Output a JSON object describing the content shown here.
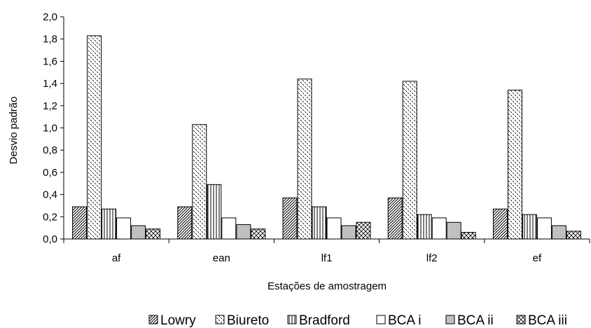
{
  "chart_data": {
    "type": "bar",
    "title": "",
    "xlabel": "Estações de amostragem",
    "ylabel": "Desvio padrão",
    "ylim": [
      0,
      2.0
    ],
    "y_step": 0.2,
    "y_tick_labels": [
      "0,0",
      "0,2",
      "0,4",
      "0,6",
      "0,8",
      "1,0",
      "1,2",
      "1,4",
      "1,6",
      "1,8",
      "2,0"
    ],
    "categories": [
      "af",
      "ean",
      "lf1",
      "lf2",
      "ef"
    ],
    "grid": false,
    "legend_position": "bottom",
    "series": [
      {
        "name": "Lowry",
        "pattern": "diagonal",
        "values": [
          0.29,
          0.29,
          0.37,
          0.37,
          0.27
        ]
      },
      {
        "name": "Biureto",
        "pattern": "dots",
        "values": [
          1.83,
          1.03,
          1.44,
          1.42,
          1.34
        ]
      },
      {
        "name": "Bradford",
        "pattern": "vertical",
        "values": [
          0.27,
          0.49,
          0.29,
          0.22,
          0.22
        ]
      },
      {
        "name": "BCA i",
        "pattern": "white",
        "values": [
          0.19,
          0.19,
          0.19,
          0.19,
          0.19
        ]
      },
      {
        "name": "BCA ii",
        "pattern": "gray",
        "values": [
          0.12,
          0.13,
          0.12,
          0.15,
          0.12
        ]
      },
      {
        "name": "BCA iii",
        "pattern": "crosshatch",
        "values": [
          0.09,
          0.09,
          0.15,
          0.06,
          0.07
        ]
      }
    ],
    "colors": {
      "axis": "#000000",
      "fill_gray": "#c0c0c0",
      "fill_white": "#ffffff"
    }
  }
}
